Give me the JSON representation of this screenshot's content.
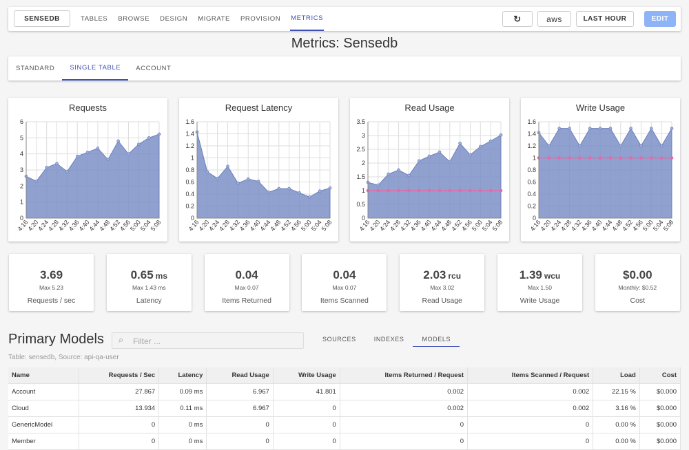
{
  "nav": {
    "app": "SENSEDB",
    "tabs": [
      "TABLES",
      "BROWSE",
      "DESIGN",
      "MIGRATE",
      "PROVISION",
      "METRICS"
    ],
    "active": 5,
    "aws": "aws",
    "range": "LAST HOUR",
    "edit": "EDIT"
  },
  "title": "Metrics: Sensedb",
  "subtabs": [
    "STANDARD",
    "SINGLE TABLE",
    "ACCOUNT"
  ],
  "subtab_active": 1,
  "charts": [
    {
      "type": "area",
      "title": "Requests",
      "categories": [
        "4:16",
        "4:20",
        "4:24",
        "4:28",
        "4:32",
        "4:36",
        "4:40",
        "4:44",
        "4:48",
        "4:52",
        "4:56",
        "5:00",
        "5:04",
        "5:08"
      ],
      "series": [
        {
          "color": "#7d91c7",
          "values": [
            2.6,
            2.3,
            3.15,
            3.4,
            2.9,
            3.85,
            4.1,
            4.35,
            3.65,
            4.8,
            4.0,
            4.6,
            5.0,
            5.23
          ]
        }
      ],
      "ylim": [
        0,
        6
      ],
      "yticks": [
        0,
        1,
        2,
        3,
        4,
        5,
        6
      ]
    },
    {
      "type": "area",
      "title": "Request Latency",
      "categories": [
        "4:16",
        "4:20",
        "4:24",
        "4:28",
        "4:32",
        "4:36",
        "4:40",
        "4:44",
        "4:48",
        "4:52",
        "4:56",
        "5:00",
        "5:04",
        "5:08"
      ],
      "series": [
        {
          "color": "#7d91c7",
          "values": [
            1.43,
            0.77,
            0.66,
            0.86,
            0.58,
            0.65,
            0.61,
            0.43,
            0.49,
            0.49,
            0.42,
            0.35,
            0.45,
            0.5
          ]
        }
      ],
      "ylim": [
        0,
        1.6
      ],
      "yticks": [
        0,
        0.2,
        0.4,
        0.6,
        0.8,
        1,
        1.2,
        1.4,
        1.6
      ]
    },
    {
      "type": "area",
      "title": "Read Usage",
      "categories": [
        "4:16",
        "4:20",
        "4:24",
        "4:28",
        "4:32",
        "4:36",
        "4:40",
        "4:44",
        "4:48",
        "4:52",
        "4:56",
        "5:00",
        "5:04",
        "5:08"
      ],
      "series": [
        {
          "color": "#7d91c7",
          "values": [
            1.3,
            1.2,
            1.6,
            1.75,
            1.55,
            2.08,
            2.25,
            2.4,
            2.05,
            2.72,
            2.3,
            2.6,
            2.8,
            3.02
          ]
        },
        {
          "color": "#e36aa8",
          "values": [
            1,
            1,
            1,
            1,
            1,
            1,
            1,
            1,
            1,
            1,
            1,
            1,
            1,
            1
          ]
        }
      ],
      "ylim": [
        0,
        3.5
      ],
      "yticks": [
        0,
        0.5,
        1,
        1.5,
        2,
        2.5,
        3,
        3.5
      ]
    },
    {
      "type": "area",
      "title": "Write Usage",
      "categories": [
        "4:16",
        "4:20",
        "4:24",
        "4:28",
        "4:32",
        "4:36",
        "4:40",
        "4:44",
        "4:48",
        "4:52",
        "4:56",
        "5:00",
        "5:04",
        "5:08"
      ],
      "series": [
        {
          "color": "#7d91c7",
          "values": [
            1.42,
            1.2,
            1.49,
            1.49,
            1.2,
            1.49,
            1.49,
            1.49,
            1.2,
            1.49,
            1.2,
            1.49,
            1.2,
            1.49
          ]
        },
        {
          "color": "#e36aa8",
          "values": [
            1,
            1,
            1,
            1,
            1,
            1,
            1,
            1,
            1,
            1,
            1,
            1,
            1,
            1
          ]
        }
      ],
      "ylim": [
        0,
        1.6
      ],
      "yticks": [
        0,
        0.2,
        0.4,
        0.6,
        0.8,
        1,
        1.2,
        1.4,
        1.6
      ]
    }
  ],
  "stats": [
    {
      "value": "3.69",
      "sub": "Max 5.23",
      "label": "Requests / sec"
    },
    {
      "value": "0.65",
      "unit": "ms",
      "sub": "Max 1.43 ms",
      "label": "Latency"
    },
    {
      "value": "0.04",
      "sub": "Max 0.07",
      "label": "Items Returned"
    },
    {
      "value": "0.04",
      "sub": "Max 0.07",
      "label": "Items Scanned"
    },
    {
      "value": "2.03",
      "unit": "rcu",
      "sub": "Max 3.02",
      "label": "Read Usage"
    },
    {
      "value": "1.39",
      "unit": "wcu",
      "sub": "Max 1.50",
      "label": "Write Usage"
    },
    {
      "value": "$0.00",
      "sub": "Monthly: $0.52",
      "label": "Cost"
    }
  ],
  "models": {
    "heading": "Primary Models",
    "filter": "Filter ...",
    "tabs": [
      "SOURCES",
      "INDEXES",
      "MODELS"
    ],
    "tab_active": 2,
    "caption": "Table: sensedb, Source: api-qa-user",
    "table": {
      "columns": [
        "Name",
        "Requests / Sec",
        "Latency",
        "Read Usage",
        "Write Usage",
        "Items Returned / Request",
        "Items Scanned / Request",
        "Load",
        "Cost"
      ],
      "rows": [
        [
          "Account",
          "27.867",
          "0.09 ms",
          "6.967",
          "41.801",
          "0.002",
          "0.002",
          "22.15 %",
          "$0.000"
        ],
        [
          "Cloud",
          "13.934",
          "0.11 ms",
          "6.967",
          "0",
          "0.002",
          "0.002",
          "3.16 %",
          "$0.000"
        ],
        [
          "GenericModel",
          "0",
          "0 ms",
          "0",
          "0",
          "0",
          "0",
          "0.00 %",
          "$0.000"
        ],
        [
          "Member",
          "0",
          "0 ms",
          "0",
          "0",
          "0",
          "0",
          "0.00 %",
          "$0.000"
        ]
      ]
    }
  }
}
